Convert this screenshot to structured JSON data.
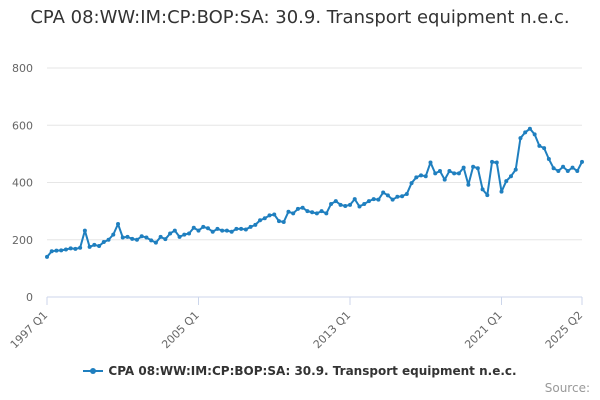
{
  "chart_data": {
    "type": "line",
    "title": "CPA 08:WW:IM:CP:BOP:SA: 30.9. Transport equipment n.e.c.",
    "xlabel": "",
    "ylabel": "",
    "ylim": [
      0,
      800
    ],
    "yticks": [
      0,
      200,
      400,
      600,
      800
    ],
    "xtick_labels": [
      "1997 Q1",
      "2005 Q1",
      "2013 Q1",
      "2021 Q1",
      "2025 Q2"
    ],
    "x_start": "1997 Q1",
    "x_end": "2025 Q2",
    "grid": true,
    "legend_position": "bottom",
    "series": [
      {
        "name": "CPA 08:WW:IM:CP:BOP:SA: 30.9. Transport equipment n.e.c.",
        "color": "#1f7fbf",
        "values": [
          140,
          160,
          162,
          163,
          166,
          170,
          168,
          172,
          232,
          175,
          182,
          178,
          192,
          200,
          218,
          255,
          208,
          210,
          203,
          200,
          212,
          208,
          198,
          190,
          210,
          202,
          222,
          232,
          210,
          218,
          222,
          242,
          232,
          245,
          240,
          228,
          238,
          232,
          232,
          228,
          238,
          238,
          236,
          245,
          252,
          268,
          275,
          285,
          288,
          265,
          262,
          298,
          292,
          308,
          312,
          300,
          296,
          292,
          300,
          292,
          325,
          335,
          322,
          318,
          322,
          342,
          316,
          325,
          335,
          342,
          340,
          365,
          355,
          340,
          350,
          352,
          360,
          398,
          418,
          425,
          422,
          470,
          432,
          440,
          410,
          440,
          432,
          432,
          452,
          392,
          455,
          450,
          376,
          356,
          472,
          470,
          368,
          405,
          422,
          445,
          555,
          575,
          588,
          568,
          528,
          520,
          482,
          450,
          440,
          455,
          440,
          452,
          440,
          472
        ]
      }
    ]
  },
  "legend": {
    "label": "CPA 08:WW:IM:CP:BOP:SA: 30.9. Transport equipment n.e.c."
  },
  "credits": "Source:"
}
